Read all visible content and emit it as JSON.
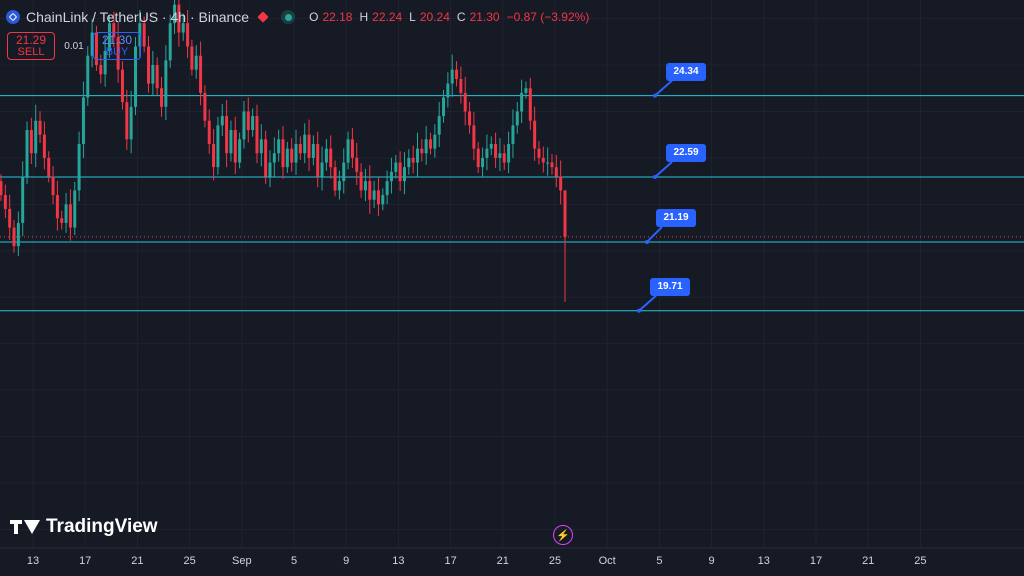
{
  "header": {
    "title": "ChainLink / TetherUS · 4h · Binance",
    "ohlc": [
      {
        "key": "O",
        "value": "22.18"
      },
      {
        "key": "H",
        "value": "22.24"
      },
      {
        "key": "L",
        "value": "20.24"
      },
      {
        "key": "C",
        "value": "21.30"
      },
      {
        "key": "",
        "value": "−0.87 (−3.92%)"
      }
    ]
  },
  "trade": {
    "sell_price": "21.29",
    "sell_label": "SELL",
    "spread": "0.01",
    "buy_price": "21.30",
    "buy_label": "BUY"
  },
  "logo_text": "TradingView",
  "colors": {
    "background": "#161a25",
    "up": "#26a69a",
    "down": "#f23645",
    "level_line": "#26c6da",
    "callout": "#2962ff",
    "current_price_line": "#f23645"
  },
  "chart_data": {
    "type": "candlestick",
    "x_ticks": [
      "13",
      "17",
      "21",
      "25",
      "Sep",
      "5",
      "9",
      "13",
      "17",
      "21",
      "25",
      "Oct",
      "5",
      "9",
      "13",
      "17",
      "21",
      "25"
    ],
    "levels": [
      24.34,
      22.59,
      21.19,
      19.71
    ],
    "level_labels": [
      "24.34",
      "22.59",
      "21.19",
      "19.71"
    ],
    "current_price": 21.3,
    "ylim": [
      14.6,
      26.4
    ],
    "closes": [
      22.2,
      21.9,
      21.5,
      21.1,
      21.6,
      22.6,
      23.6,
      23.1,
      23.8,
      23.5,
      23.0,
      22.6,
      22.2,
      21.7,
      21.6,
      22.0,
      21.5,
      22.3,
      23.3,
      24.3,
      25.2,
      25.7,
      25.0,
      24.8,
      25.3,
      25.9,
      25.6,
      24.9,
      24.2,
      23.4,
      24.1,
      25.4,
      25.9,
      25.4,
      24.6,
      25.0,
      24.5,
      24.1,
      25.1,
      25.9,
      26.3,
      25.7,
      25.9,
      25.4,
      24.9,
      25.2,
      24.4,
      23.8,
      23.3,
      22.8,
      23.7,
      23.9,
      23.1,
      23.6,
      22.9,
      23.4,
      24.0,
      23.6,
      23.9,
      23.1,
      23.4,
      22.6,
      22.9,
      23.1,
      23.4,
      22.8,
      23.2,
      22.9,
      23.3,
      23.1,
      23.5,
      23.0,
      23.3,
      22.6,
      22.9,
      23.2,
      22.8,
      22.3,
      22.5,
      22.9,
      23.4,
      23.0,
      22.7,
      22.3,
      22.5,
      22.1,
      22.3,
      22.0,
      22.2,
      22.5,
      22.7,
      22.9,
      22.5,
      22.8,
      23.0,
      22.9,
      23.2,
      23.1,
      23.4,
      23.2,
      23.5,
      23.9,
      24.3,
      24.6,
      24.9,
      24.7,
      24.4,
      24.0,
      23.7,
      23.2,
      22.8,
      23.0,
      23.2,
      23.3,
      23.0,
      23.1,
      22.9,
      23.3,
      23.7,
      24.0,
      24.4,
      24.5,
      23.8,
      23.2,
      23.0,
      22.9,
      22.9,
      22.8,
      22.6,
      22.3,
      21.3
    ]
  }
}
